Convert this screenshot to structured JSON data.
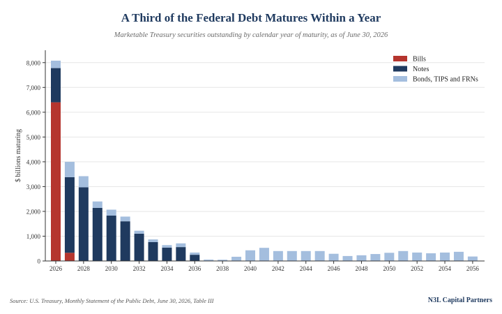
{
  "header": {
    "title": "A Third of the Federal Debt Matures Within a Year",
    "subtitle": "Marketable Treasury securities outstanding by calendar year of maturity, as of June 30, 2026"
  },
  "footer": {
    "source": "Source: U.S. Treasury, Monthly Statement of the Public Debt, June 30, 2026, Table III",
    "brand": "N3L Capital Partners"
  },
  "colors": {
    "Bills": "#b5352e",
    "Notes": "#1f3a5f",
    "Bonds": "#a4bede",
    "title": "#1f3a5f"
  },
  "chart_data": {
    "type": "bar",
    "stacked": true,
    "categories": [
      2026,
      2027,
      2028,
      2029,
      2030,
      2031,
      2032,
      2033,
      2034,
      2035,
      2036,
      2037,
      2038,
      2039,
      2040,
      2041,
      2042,
      2043,
      2044,
      2045,
      2046,
      2047,
      2048,
      2049,
      2050,
      2051,
      2052,
      2053,
      2054,
      2055,
      2056
    ],
    "x_tick_labels": [
      "2026",
      "2028",
      "2030",
      "2032",
      "2034",
      "2036",
      "2038",
      "2040",
      "2042",
      "2044",
      "2046",
      "2048",
      "2050",
      "2052",
      "2054",
      "2056"
    ],
    "series": [
      {
        "name": "Bills",
        "color": "#b5352e",
        "values": [
          6400,
          330,
          0,
          0,
          0,
          0,
          0,
          0,
          0,
          0,
          0,
          0,
          0,
          0,
          0,
          0,
          0,
          0,
          0,
          0,
          0,
          0,
          0,
          0,
          0,
          0,
          0,
          0,
          0,
          0,
          0
        ]
      },
      {
        "name": "Notes",
        "color": "#1f3a5f",
        "values": [
          1380,
          3050,
          2970,
          2140,
          1830,
          1600,
          1100,
          760,
          540,
          560,
          250,
          0,
          0,
          0,
          0,
          0,
          0,
          0,
          0,
          0,
          0,
          0,
          0,
          0,
          0,
          0,
          0,
          0,
          0,
          0,
          0
        ]
      },
      {
        "name": "Bonds, TIPS and FRNs",
        "color": "#a4bede",
        "values": [
          300,
          620,
          450,
          260,
          240,
          190,
          120,
          110,
          100,
          150,
          90,
          55,
          50,
          170,
          430,
          530,
          400,
          400,
          400,
          400,
          290,
          200,
          230,
          280,
          330,
          400,
          340,
          310,
          340,
          370,
          180
        ]
      }
    ],
    "ylabel": "$ billions maturing",
    "xlabel": "",
    "ylim": [
      0,
      8500
    ],
    "y_ticks": [
      0,
      1000,
      2000,
      3000,
      4000,
      5000,
      6000,
      7000,
      8000
    ],
    "y_tick_labels": [
      "0",
      "1,000",
      "2,000",
      "3,000",
      "4,000",
      "5,000",
      "6,000",
      "7,000",
      "8,000"
    ],
    "legend_position": "top-right",
    "grid": true
  }
}
